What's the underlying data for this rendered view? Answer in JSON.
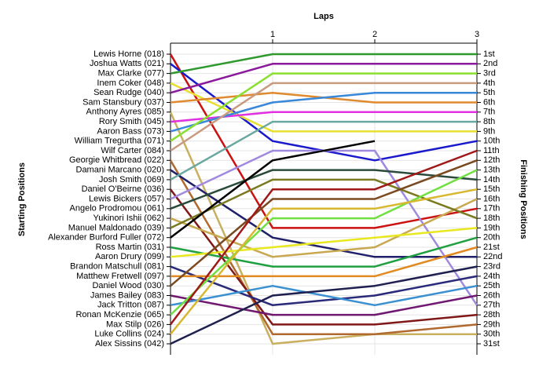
{
  "chart_data": {
    "type": "lap",
    "title": "Laps",
    "y_label_left": "Starting Positions",
    "y_label_right": "Finishing Positions",
    "categories": [
      null,
      "1",
      "2",
      "3"
    ],
    "ylim": [
      1,
      31
    ],
    "y_inverted": true,
    "finishing_labels": [
      "1st",
      "2nd",
      "3rd",
      "4th",
      "5th",
      "6th",
      "7th",
      "8th",
      "9th",
      "10th",
      "11th",
      "12th",
      "13th",
      "14th",
      "15th",
      "16th",
      "17th",
      "18th",
      "19th",
      "20th",
      "21st",
      "22nd",
      "23rd",
      "24th",
      "25th",
      "26th",
      "27th",
      "28th",
      "29th",
      "30th",
      "31st"
    ],
    "series": [
      {
        "name": "Lewis Horne (018)",
        "color": "#cc1111",
        "values": [
          1,
          19,
          19,
          17
        ]
      },
      {
        "name": "Joshua Watts (021)",
        "color": "#1a1acc",
        "values": [
          2,
          10,
          12,
          10
        ]
      },
      {
        "name": "Max Clarke (077)",
        "color": "#2e9a2e",
        "values": [
          3,
          1,
          1,
          1
        ]
      },
      {
        "name": "Inem Coker (048)",
        "color": "#e8e030",
        "values": [
          4,
          9,
          9,
          9
        ]
      },
      {
        "name": "Sean Rudge (040)",
        "color": "#8a1a9a",
        "values": [
          5,
          2,
          2,
          2
        ]
      },
      {
        "name": "Sam Stansbury (037)",
        "color": "#e08a30",
        "values": [
          6,
          5,
          6,
          6
        ]
      },
      {
        "name": "Anthony Ayres (085)",
        "color": "#c8b060",
        "values": [
          7,
          31,
          30,
          30
        ]
      },
      {
        "name": "Rory Smith (045)",
        "color": "#e030e0",
        "values": [
          8,
          7,
          7,
          7
        ]
      },
      {
        "name": "Aaron Bass (073)",
        "color": "#3a88d8",
        "values": [
          9,
          6,
          5,
          5
        ]
      },
      {
        "name": "William Tregurtha (071)",
        "color": "#8ae030",
        "values": [
          10,
          3,
          3,
          3
        ]
      },
      {
        "name": "Wilf Carter (084)",
        "color": "#c89a80",
        "values": [
          11,
          4,
          4,
          4
        ]
      },
      {
        "name": "Georgie Whitbread (022)",
        "color": "#b06a30",
        "values": [
          12,
          30,
          30,
          29
        ]
      },
      {
        "name": "Damani Marcano (020)",
        "color": "#20206a",
        "values": [
          13,
          20,
          22,
          22
        ]
      },
      {
        "name": "Josh Smith (069)",
        "color": "#6aa8a0",
        "values": [
          14,
          8,
          8,
          8
        ]
      },
      {
        "name": "Daniel O'Beirne (036)",
        "color": "#801818",
        "values": [
          15,
          29,
          29,
          28
        ]
      },
      {
        "name": "Lewis Bickers (057)",
        "color": "#a08ae0",
        "values": [
          16,
          11,
          11,
          27
        ]
      },
      {
        "name": "Angelo Prodromou (061)",
        "color": "#2a4a3a",
        "values": [
          17,
          13,
          13,
          14
        ]
      },
      {
        "name": "Yukinori Ishii (062)",
        "color": "#c8a850",
        "values": [
          18,
          22,
          21,
          16
        ]
      },
      {
        "name": "Manuel Maldonado (039)",
        "color": "#7a7a20",
        "values": [
          19,
          14,
          14,
          18
        ]
      },
      {
        "name": "Alexander Burford Fuller (072)",
        "color": "#000000",
        "values": [
          20,
          12,
          10,
          null
        ]
      },
      {
        "name": "Ross Martin (031)",
        "color": "#20a040",
        "values": [
          21,
          23,
          23,
          20
        ]
      },
      {
        "name": "Aaron Drury (099)",
        "color": "#e8e820",
        "values": [
          22,
          21,
          20,
          19
        ]
      },
      {
        "name": "Brandon Matschull (081)",
        "color": "#2a2a7a",
        "values": [
          23,
          27,
          26,
          24
        ]
      },
      {
        "name": "Matthew Fretwell (097)",
        "color": "#e08a20",
        "values": [
          24,
          24,
          24,
          21
        ]
      },
      {
        "name": "Daniel Wood (030)",
        "color": "#7a4a20",
        "values": [
          25,
          16,
          16,
          12
        ]
      },
      {
        "name": "James Bailey (083)",
        "color": "#701870",
        "values": [
          26,
          28,
          28,
          26
        ]
      },
      {
        "name": "Jack Tritton (087)",
        "color": "#3a90d0",
        "values": [
          27,
          25,
          27,
          25
        ]
      },
      {
        "name": "Ronan McKenzie (065)",
        "color": "#70e040",
        "values": [
          28,
          18,
          18,
          13
        ]
      },
      {
        "name": "Max Stilp (026)",
        "color": "#a01818",
        "values": [
          29,
          15,
          15,
          11
        ]
      },
      {
        "name": "Luke Collins (024)",
        "color": "#d8b830",
        "values": [
          30,
          17,
          17,
          15
        ]
      },
      {
        "name": "Alex Sissins (042)",
        "color": "#202050",
        "values": [
          31,
          26,
          25,
          23
        ]
      }
    ]
  }
}
